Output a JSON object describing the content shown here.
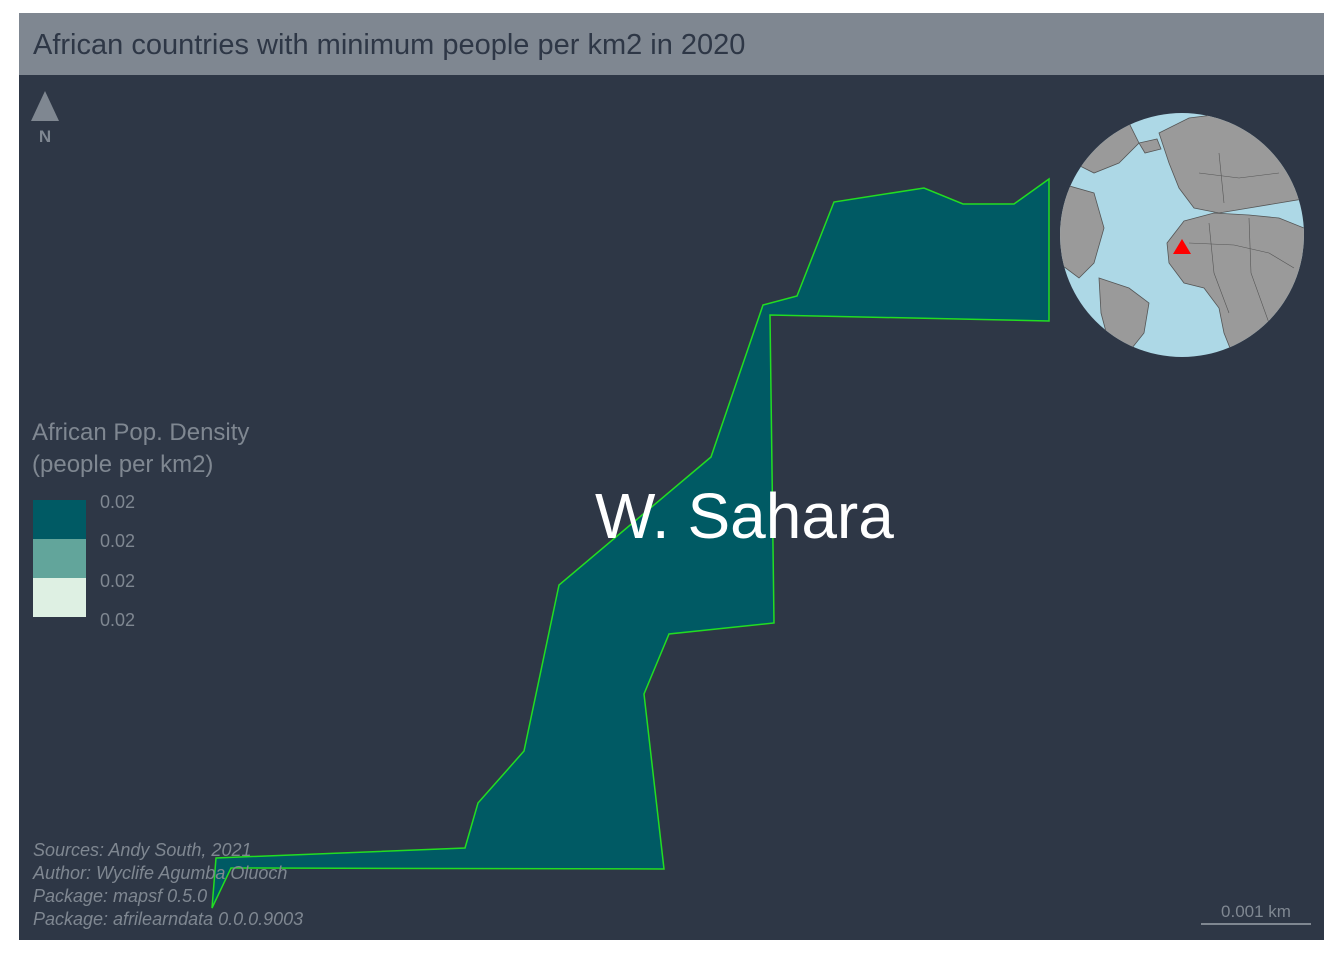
{
  "title": "African countries with minimum people per km2 in 2020",
  "region_label": "W. Sahara",
  "north_arrow": {
    "icon": "north-arrow-icon",
    "letter": "N"
  },
  "legend": {
    "title_line1": "African Pop. Density",
    "title_line2": "(people per km2)",
    "items": [
      {
        "label": "0.02",
        "color": "#005a64"
      },
      {
        "label": "0.02",
        "color": "#62a59b"
      },
      {
        "label": "0.02",
        "color": "#def0e3"
      },
      {
        "label": "0.02"
      }
    ]
  },
  "credits": [
    "Sources: Andy South, 2021",
    "Author: Wyclife Agumba Oluoch",
    "Package: mapsf 0.5.0",
    "Package: afrilearndata 0.0.0.9003"
  ],
  "scale_bar": {
    "label": "0.001 km"
  },
  "colors": {
    "background": "#2e3746",
    "title_bar": "#7f8791",
    "country_fill": "#005a64",
    "country_border": "#22dd22",
    "ocean": "#add8e6",
    "land": "#9a9a9a",
    "highlight_marker": "#ff0000"
  },
  "inset": {
    "type": "orthographic-globe",
    "marker_icon": "red-triangle-icon"
  }
}
